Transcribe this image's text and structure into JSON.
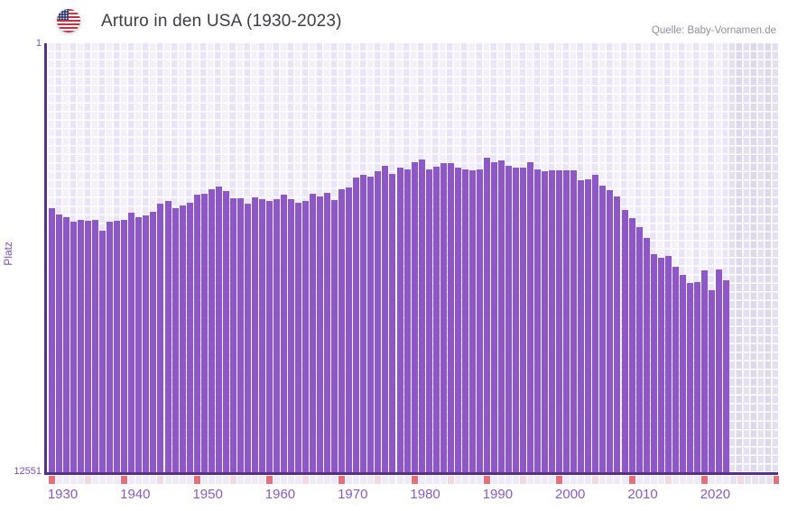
{
  "header": {
    "title": "Arturo in den USA (1930-2023)",
    "source": "Quelle: Baby-Vornamen.de",
    "flag_icon": "us-flag-icon"
  },
  "y_axis": {
    "label": "Platz",
    "top_tick": "1",
    "bottom_tick": "12551"
  },
  "chart_data": {
    "type": "bar",
    "title": "Arturo in den USA (1930-2023)",
    "xlabel": "",
    "ylabel": "Platz",
    "ylim": [
      1,
      12551
    ],
    "y_inverted": true,
    "y_scale_note": "rank axis, 1 at top, values estimated by linear interpolation between labeled ticks 1 and 12551",
    "x_range_drawn": [
      1930,
      2030
    ],
    "xticks": [
      1930,
      1940,
      1950,
      1960,
      1970,
      1980,
      1990,
      2000,
      2010,
      2020
    ],
    "grid": true,
    "legend_position": "none",
    "years": [
      1930,
      1931,
      1932,
      1933,
      1934,
      1935,
      1936,
      1937,
      1938,
      1939,
      1940,
      1941,
      1942,
      1943,
      1944,
      1945,
      1946,
      1947,
      1948,
      1949,
      1950,
      1951,
      1952,
      1953,
      1954,
      1955,
      1956,
      1957,
      1958,
      1959,
      1960,
      1961,
      1962,
      1963,
      1964,
      1965,
      1966,
      1967,
      1968,
      1969,
      1970,
      1971,
      1972,
      1973,
      1974,
      1975,
      1976,
      1977,
      1978,
      1979,
      1980,
      1981,
      1982,
      1983,
      1984,
      1985,
      1986,
      1987,
      1988,
      1989,
      1990,
      1991,
      1992,
      1993,
      1994,
      1995,
      1996,
      1997,
      1998,
      1999,
      2000,
      2001,
      2002,
      2003,
      2004,
      2005,
      2006,
      2007,
      2008,
      2009,
      2010,
      2011,
      2012,
      2013,
      2014,
      2015,
      2016,
      2017,
      2018,
      2019,
      2020,
      2021,
      2022,
      2023
    ],
    "values": [
      4815,
      4999,
      5097,
      5228,
      5165,
      5184,
      5157,
      5491,
      5228,
      5202,
      5165,
      4965,
      5097,
      5034,
      4920,
      4684,
      4613,
      4815,
      4736,
      4657,
      4439,
      4394,
      4263,
      4184,
      4315,
      4544,
      4544,
      4684,
      4499,
      4565,
      4618,
      4570,
      4420,
      4570,
      4676,
      4613,
      4412,
      4481,
      4376,
      4596,
      4263,
      4218,
      3939,
      3850,
      3912,
      3736,
      3587,
      3823,
      3631,
      3692,
      3473,
      3413,
      3692,
      3605,
      3500,
      3518,
      3649,
      3697,
      3723,
      3684,
      3342,
      3492,
      3421,
      3587,
      3631,
      3631,
      3492,
      3689,
      3755,
      3710,
      3718,
      3710,
      3718,
      4000,
      3973,
      3842,
      4176,
      4289,
      4481,
      4876,
      5123,
      5386,
      5692,
      6165,
      6281,
      6218,
      6544,
      6780,
      7025,
      6981,
      6649,
      7228,
      6604,
      6938
    ]
  },
  "style": {
    "bar_color": "#8d57c5",
    "axis_color": "#55318f",
    "year_label_color": "#8a5bbe",
    "tick_label_color": "#7c4fb0",
    "title_color": "#3d3d46",
    "source_color": "#90909a",
    "decade_marker_color": "#e5707c",
    "half_decade_marker_color": "#f3d8e0",
    "strip_color": "#efeaf7",
    "strip_future_color": "#e7e2f1",
    "plot_bg_light": "#f3f0fb",
    "plot_bg_dark": "#eae5f6",
    "future_bg": "#e1dcee"
  }
}
